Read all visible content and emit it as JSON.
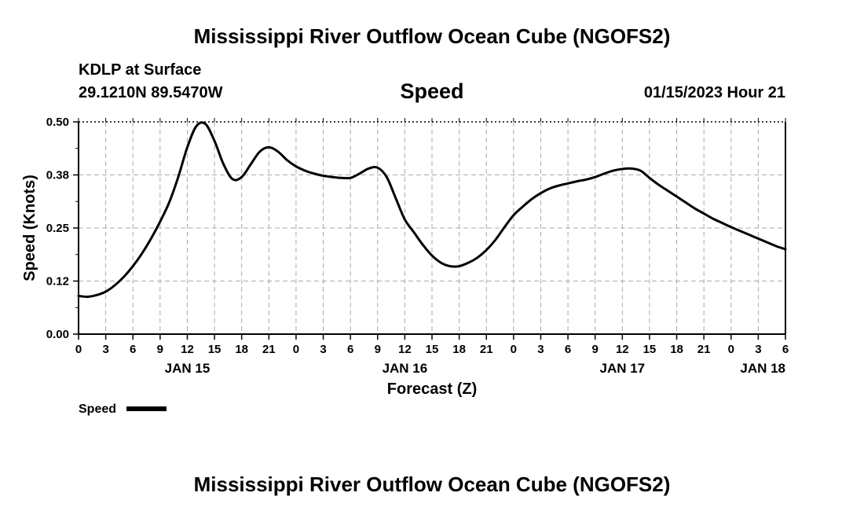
{
  "header": {
    "title": "Mississippi River Outflow Ocean Cube (NGOFS2)",
    "station": "KDLP at Surface",
    "coords": "29.1210N  89.5470W",
    "variable": "Speed",
    "datetime": "01/15/2023 Hour 21"
  },
  "footer": {
    "title": "Mississippi River Outflow Ocean Cube (NGOFS2)"
  },
  "chart_data": {
    "type": "line",
    "xlabel": "Forecast (Z)",
    "ylabel": "Speed (Knots)",
    "ylim": [
      0,
      0.5
    ],
    "yticks": [
      "0.00",
      "0.12",
      "0.25",
      "0.38",
      "0.50"
    ],
    "xlim_hours": [
      0,
      78
    ],
    "xtick_labels": [
      "0",
      "3",
      "6",
      "9",
      "12",
      "15",
      "18",
      "21",
      "0",
      "3",
      "6",
      "9",
      "12",
      "15",
      "18",
      "21",
      "0",
      "3",
      "6",
      "9",
      "12",
      "15",
      "18",
      "21",
      "0",
      "3",
      "6"
    ],
    "day_labels": [
      {
        "label": "JAN 15",
        "hour": 12
      },
      {
        "label": "JAN 16",
        "hour": 36
      },
      {
        "label": "JAN 17",
        "hour": 60
      },
      {
        "label": "JAN 18",
        "hour": 78
      }
    ],
    "grid": true,
    "legend_position": "bottom-left",
    "series": [
      {
        "name": "Speed",
        "x": [
          0,
          1,
          2,
          3,
          4,
          5,
          6,
          7,
          8,
          9,
          10,
          11,
          12,
          13,
          14,
          15,
          16,
          17,
          18,
          19,
          20,
          21,
          22,
          23,
          24,
          25,
          26,
          27,
          28,
          29,
          30,
          31,
          32,
          33,
          34,
          35,
          36,
          37,
          38,
          39,
          40,
          41,
          42,
          43,
          44,
          45,
          46,
          47,
          48,
          49,
          50,
          51,
          52,
          53,
          54,
          55,
          56,
          57,
          58,
          59,
          60,
          61,
          62,
          63,
          64,
          65,
          66,
          67,
          68,
          69,
          70,
          71,
          72,
          73,
          74,
          75,
          76,
          77,
          78
        ],
        "values": [
          0.09,
          0.088,
          0.092,
          0.1,
          0.115,
          0.135,
          0.16,
          0.19,
          0.225,
          0.265,
          0.31,
          0.37,
          0.44,
          0.49,
          0.495,
          0.455,
          0.4,
          0.365,
          0.37,
          0.4,
          0.43,
          0.44,
          0.43,
          0.41,
          0.395,
          0.385,
          0.378,
          0.373,
          0.37,
          0.368,
          0.368,
          0.378,
          0.39,
          0.392,
          0.37,
          0.32,
          0.27,
          0.24,
          0.21,
          0.185,
          0.168,
          0.16,
          0.16,
          0.168,
          0.18,
          0.198,
          0.222,
          0.252,
          0.28,
          0.3,
          0.318,
          0.332,
          0.343,
          0.35,
          0.355,
          0.36,
          0.364,
          0.37,
          0.378,
          0.385,
          0.389,
          0.39,
          0.385,
          0.368,
          0.352,
          0.338,
          0.324,
          0.31,
          0.296,
          0.284,
          0.272,
          0.262,
          0.252,
          0.243,
          0.234,
          0.225,
          0.216,
          0.207,
          0.2
        ]
      }
    ]
  }
}
